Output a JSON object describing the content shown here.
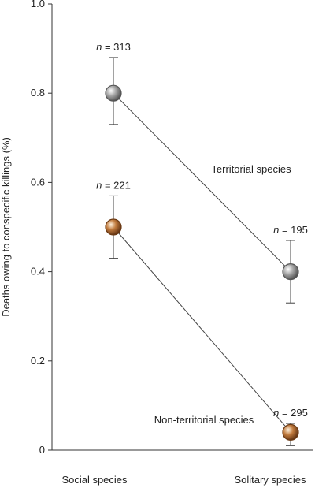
{
  "chart_data": {
    "type": "scatter",
    "ylabel": "Deaths owing to conspecific killings (%)",
    "xlabel": "",
    "categories": [
      "Social species",
      "Solitary species"
    ],
    "ylim": [
      0,
      1.0
    ],
    "yticks": [
      "0",
      "0.2",
      "0.4",
      "0.6",
      "0.8",
      "1.0"
    ],
    "grid": false,
    "series": [
      {
        "name": "Territorial species",
        "color": "#8a8a8a",
        "points": [
          {
            "category": "Social species",
            "y": 0.8,
            "err_low": 0.73,
            "err_high": 0.88,
            "n_label": "n = 313"
          },
          {
            "category": "Solitary species",
            "y": 0.4,
            "err_low": 0.33,
            "err_high": 0.47,
            "n_label": "n = 195"
          }
        ]
      },
      {
        "name": "Non-territorial species",
        "color": "#a0602c",
        "points": [
          {
            "category": "Social species",
            "y": 0.5,
            "err_low": 0.43,
            "err_high": 0.57,
            "n_label": "n = 221"
          },
          {
            "category": "Solitary species",
            "y": 0.04,
            "err_low": 0.01,
            "err_high": 0.06,
            "n_label": "n = 295"
          }
        ]
      }
    ]
  }
}
